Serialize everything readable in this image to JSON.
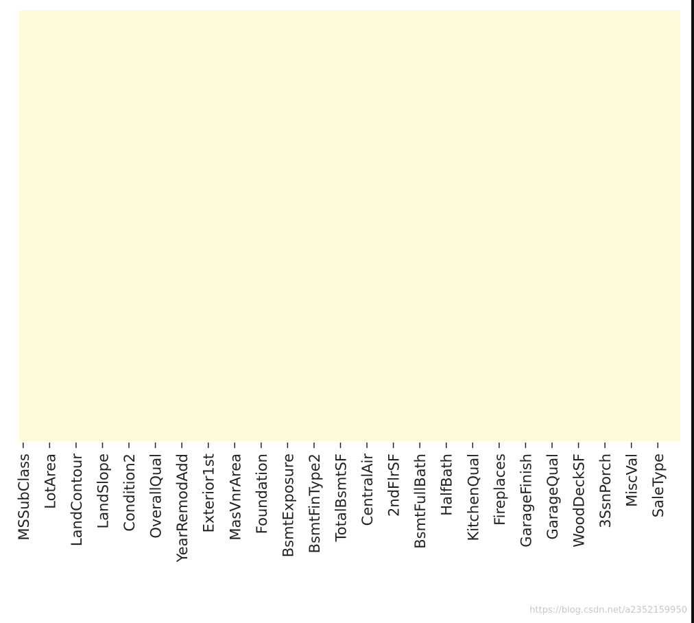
{
  "chart_data": {
    "type": "heatmap",
    "categories": [
      "MSSubClass",
      "LotArea",
      "LandContour",
      "LandSlope",
      "Condition2",
      "OverallQual",
      "YearRemodAdd",
      "Exterior1st",
      "MasVnrArea",
      "Foundation",
      "BsmtExposure",
      "BsmtFinType2",
      "TotalBsmtSF",
      "CentralAir",
      "2ndFlrSF",
      "BsmtFullBath",
      "HalfBath",
      "KitchenQual",
      "Fireplaces",
      "GarageFinish",
      "GarageQual",
      "WoodDeckSF",
      "3SsnPorch",
      "MiscVal",
      "SaleType"
    ],
    "color": "#fffbd9"
  },
  "watermark": "https://blog.csdn.net/a2352159950"
}
